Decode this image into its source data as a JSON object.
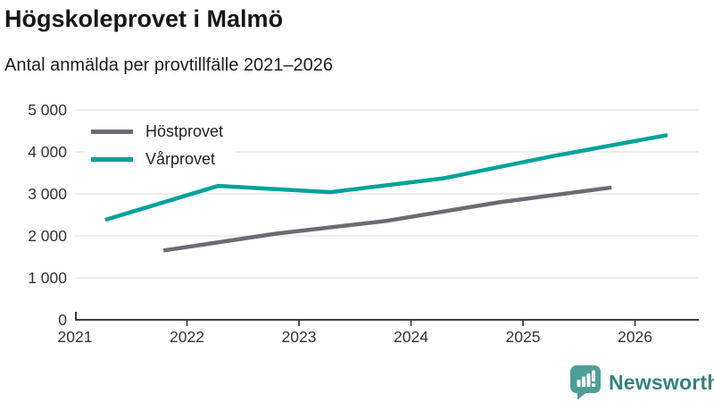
{
  "header": {
    "title": "Högskoleprovet i Malmö",
    "subtitle": "Antal anmälda per provtillfälle 2021–2026"
  },
  "chart_data": {
    "type": "line",
    "title": "Högskoleprovet i Malmö",
    "subtitle": "Antal anmälda per provtillfälle 2021–2026",
    "xlabel": "",
    "ylabel": "",
    "xlim": [
      2021,
      2026.62
    ],
    "ylim": [
      0,
      5000
    ],
    "grid": true,
    "legend_position": "top-left",
    "x_ticks": [
      2021,
      2022,
      2023,
      2024,
      2025,
      2026
    ],
    "x_tick_labels": [
      "2021",
      "2022",
      "2023",
      "2024",
      "2025",
      "2026"
    ],
    "y_ticks": [
      0,
      1000,
      2000,
      3000,
      4000,
      5000
    ],
    "y_tick_labels": [
      "0",
      "1 000",
      "2 000",
      "3 000",
      "4 000",
      "5 000"
    ],
    "series": [
      {
        "name": "Höstprovet",
        "color": "#6e6a72",
        "x": [
          2021.79,
          2022.79,
          2023.79,
          2024.79,
          2025.79
        ],
        "values": [
          1650,
          2050,
          2360,
          2800,
          3150
        ]
      },
      {
        "name": "Vårprovet",
        "color": "#00a29a",
        "x": [
          2021.27,
          2022.28,
          2023.28,
          2024.29,
          2025.29,
          2026.29
        ],
        "values": [
          2380,
          3190,
          3040,
          3370,
          3910,
          4400
        ]
      }
    ]
  },
  "legend": {
    "items": [
      {
        "label": "Höstprovet",
        "color": "#6e6a72"
      },
      {
        "label": "Vårprovet",
        "color": "#00a29a"
      }
    ]
  },
  "footer": {
    "brand": "Newsworthy",
    "logo_icon": "bar-chart-speech-bubble-icon",
    "logo_color": "#4d9e97",
    "text_color": "#35837d"
  },
  "colors": {
    "axis": "#3b3b3b",
    "gridline": "#e2e2e2",
    "tick_label": "#333333",
    "background": "#ffffff"
  }
}
